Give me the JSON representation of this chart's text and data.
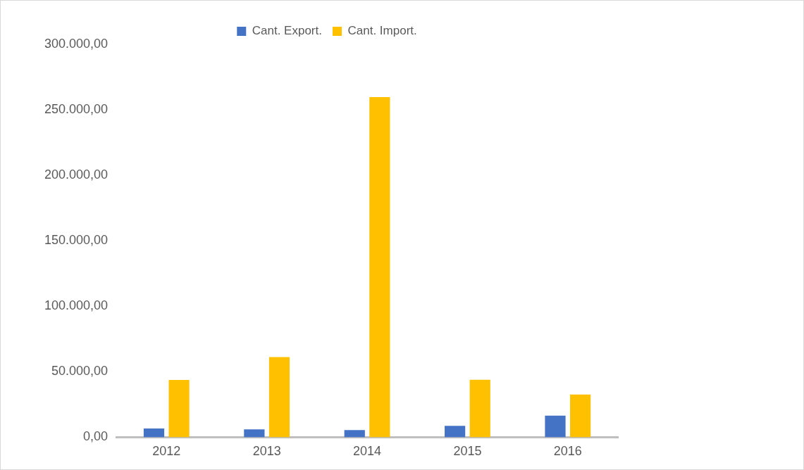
{
  "chart_data": {
    "type": "bar",
    "categories": [
      "2012",
      "2013",
      "2014",
      "2015",
      "2016"
    ],
    "series": [
      {
        "name": "Cant. Export.",
        "color": "#4472c4",
        "values": [
          6700,
          6000,
          5500,
          8700,
          16500
        ]
      },
      {
        "name": "Cant. Import.",
        "color": "#ffc000",
        "values": [
          43700,
          61200,
          259700,
          43800,
          32600
        ]
      }
    ],
    "ylim": [
      0,
      300000
    ],
    "yticks": [
      {
        "value": 0,
        "label": "0,00"
      },
      {
        "value": 50000,
        "label": "50.000,00"
      },
      {
        "value": 100000,
        "label": "100.000,00"
      },
      {
        "value": 150000,
        "label": "150.000,00"
      },
      {
        "value": 200000,
        "label": "200.000,00"
      },
      {
        "value": 250000,
        "label": "250.000,00"
      },
      {
        "value": 300000,
        "label": "300.000,00"
      }
    ],
    "grid": false,
    "legend": "top"
  }
}
